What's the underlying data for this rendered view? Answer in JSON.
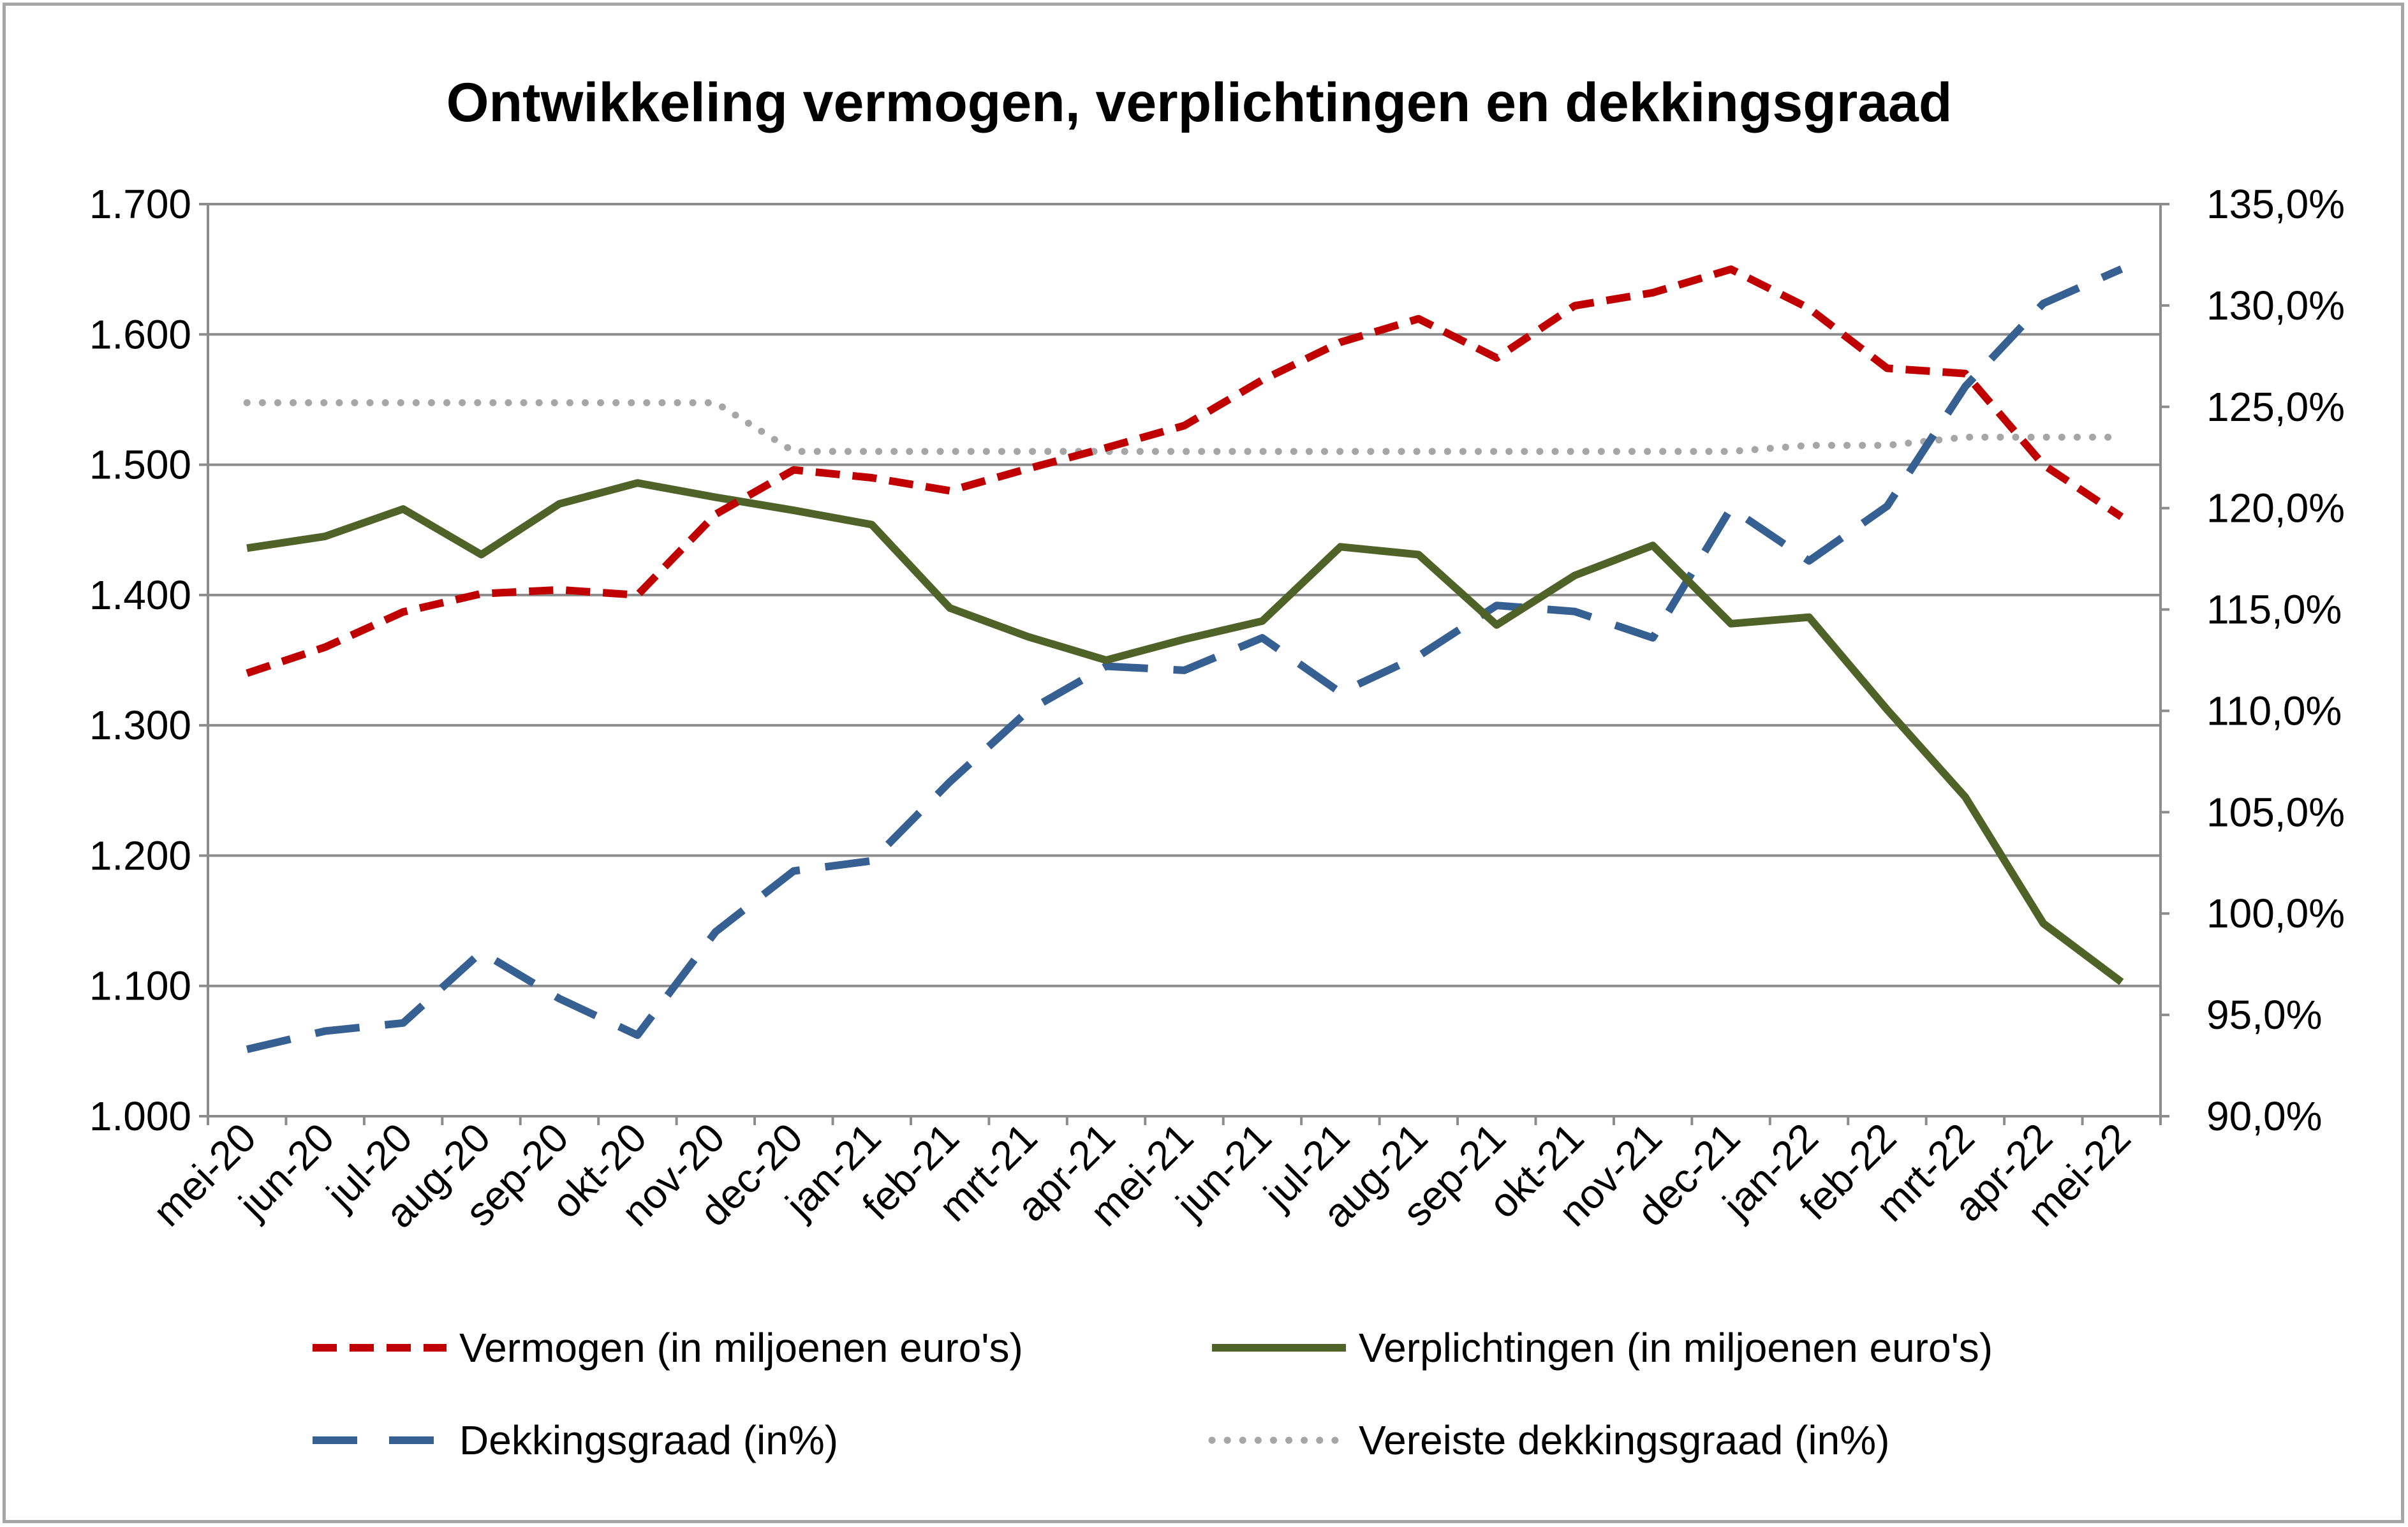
{
  "chart_data": {
    "type": "line",
    "title": "Ontwikkeling vermogen, verplichtingen en dekkingsgraad",
    "categories": [
      "mei-20",
      "jun-20",
      "jul-20",
      "aug-20",
      "sep-20",
      "okt-20",
      "nov-20",
      "dec-20",
      "jan-21",
      "feb-21",
      "mrt-21",
      "apr-21",
      "mei-21",
      "jun-21",
      "jul-21",
      "aug-21",
      "sep-21",
      "okt-21",
      "nov-21",
      "dec-21",
      "jan-22",
      "feb-22",
      "mrt-22",
      "apr-22",
      "mei-22"
    ],
    "y_left": {
      "ylim": [
        1000,
        1700
      ],
      "ticks": [
        "1.000",
        "1.100",
        "1.200",
        "1.300",
        "1.400",
        "1.500",
        "1.600",
        "1.700"
      ]
    },
    "y_right": {
      "ylim": [
        90,
        135
      ],
      "ticks": [
        "90,0%",
        "95,0%",
        "100,0%",
        "105,0%",
        "110,0%",
        "115,0%",
        "120,0%",
        "125,0%",
        "130,0%",
        "135,0%"
      ]
    },
    "grid": true,
    "legend_position": "bottom",
    "series": [
      {
        "name": "Vermogen (in miljoenen euro's)",
        "axis": "left",
        "color": "#c00000",
        "style": "dashed",
        "values": [
          1340,
          1360,
          1387,
          1401,
          1404,
          1400,
          1462,
          1496,
          1490,
          1480,
          1497,
          1513,
          1530,
          1565,
          1594,
          1612,
          1582,
          1622,
          1632,
          1650,
          1620,
          1574,
          1570,
          1500,
          1460
        ]
      },
      {
        "name": "Verplichtingen (in miljoenen euro's)",
        "axis": "left",
        "color": "#4f6228",
        "style": "solid",
        "values": [
          1436,
          1445,
          1466,
          1431,
          1470,
          1486,
          1475,
          1465,
          1454,
          1390,
          1368,
          1350,
          1366,
          1380,
          1437,
          1431,
          1377,
          1415,
          1438,
          1378,
          1383,
          1312,
          1245,
          1148,
          1103
        ]
      },
      {
        "name": "Dekkingsgraad (in%)",
        "axis": "right",
        "color": "#376092",
        "style": "longdash",
        "values": [
          93.3,
          94.2,
          94.6,
          98.1,
          95.8,
          94.0,
          99.1,
          102.1,
          102.6,
          106.5,
          110.0,
          112.2,
          112.0,
          113.6,
          110.9,
          112.7,
          115.2,
          114.9,
          113.6,
          120.0,
          117.4,
          120.1,
          126.0,
          130.1,
          131.8
        ]
      },
      {
        "name": "Vereiste dekkingsgraad (in%)",
        "axis": "right",
        "color": "#a6a6a6",
        "style": "dotted",
        "values": [
          125.2,
          125.2,
          125.2,
          125.2,
          125.2,
          125.2,
          125.2,
          122.8,
          122.8,
          122.8,
          122.8,
          122.8,
          122.8,
          122.8,
          122.8,
          122.8,
          122.8,
          122.8,
          122.8,
          122.8,
          123.1,
          123.1,
          123.5,
          123.5,
          123.5
        ]
      }
    ]
  }
}
